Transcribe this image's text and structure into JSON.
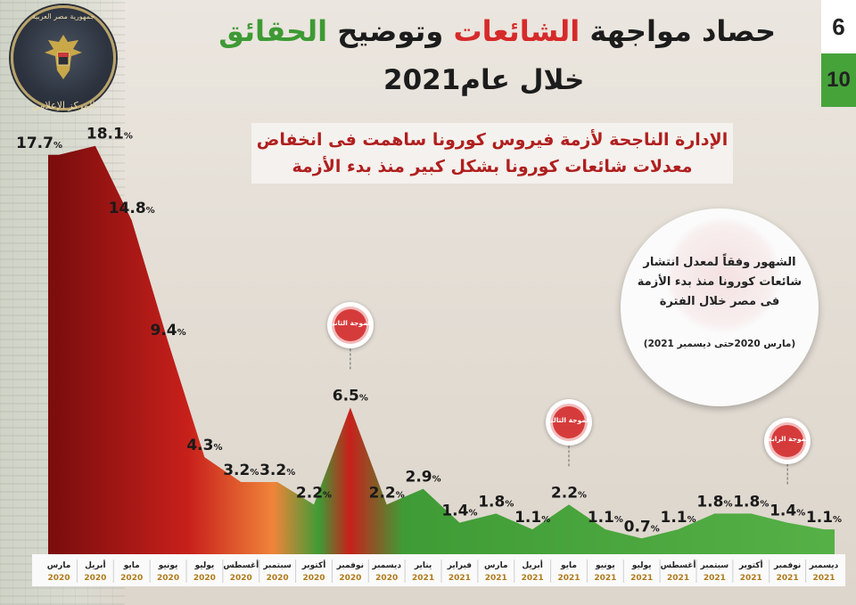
{
  "page_numbers": {
    "top": "6",
    "bottom": "10"
  },
  "logo_text": {
    "arc": "جمهورية مصر العربية",
    "ribbon": "المركز الإعلامي"
  },
  "title": {
    "part1": "حصاد مواجهة ",
    "part2": "الشائعات",
    "part3": " وتوضيح ",
    "part4": "الحقائق",
    "line2": "خلال عام2021"
  },
  "subtitle": [
    "الإدارة الناجحة لأزمة فيروس كورونا ساهمت فى انخفاض",
    "معدلات شائعات كورونا بشكل كبير منذ بدء الأزمة"
  ],
  "info_box": {
    "text": "الشهور وفقاً لمعدل انتشار شائعات كورونا منذ بدء الأزمة فى مصر خلال الفترة",
    "note": "(مارس 2020حتى ديسمبر 2021)"
  },
  "waves": [
    "الموجة الثانية",
    "الموجة الثالثة",
    "الموجة الرابعة"
  ],
  "chart_data": {
    "type": "area",
    "x": [
      "مارس 2020",
      "أبريل 2020",
      "مايو 2020",
      "يونيو 2020",
      "يوليو 2020",
      "أغسطس 2020",
      "سبتمبر 2020",
      "أكتوبر 2020",
      "نوفمبر 2020",
      "ديسمبر 2020",
      "يناير 2021",
      "فبراير 2021",
      "مارس 2021",
      "أبريل 2021",
      "مايو 2021",
      "يونيو 2021",
      "يوليو 2021",
      "أغسطس 2021",
      "سبتمبر 2021",
      "أكتوبر 2021",
      "نوفمبر 2021",
      "ديسمبر 2021"
    ],
    "months": [
      "مارس",
      "أبريل",
      "مايو",
      "يونيو",
      "يوليو",
      "أغسطس",
      "سبتمبر",
      "أكتوبر",
      "نوفمبر",
      "ديسمبر",
      "يناير",
      "فبراير",
      "مارس",
      "أبريل",
      "مايو",
      "يونيو",
      "يوليو",
      "أغسطس",
      "سبتمبر",
      "أكتوبر",
      "نوفمبر",
      "ديسمبر"
    ],
    "years": [
      "2020",
      "2020",
      "2020",
      "2020",
      "2020",
      "2020",
      "2020",
      "2020",
      "2020",
      "2020",
      "2021",
      "2021",
      "2021",
      "2021",
      "2021",
      "2021",
      "2021",
      "2021",
      "2021",
      "2021",
      "2021",
      "2021"
    ],
    "values": [
      17.7,
      18.1,
      14.8,
      9.4,
      4.3,
      3.2,
      3.2,
      2.2,
      6.5,
      2.2,
      2.9,
      1.4,
      1.8,
      1.1,
      2.2,
      1.1,
      0.7,
      1.1,
      1.8,
      1.8,
      1.4,
      1.1
    ],
    "unit": "%",
    "ylim": [
      0,
      19
    ],
    "grid": false,
    "colors": {
      "start": "#7e0e0e",
      "mid_red": "#c8201b",
      "orange": "#f0843a",
      "green": "#3f9b35",
      "light_green": "#55b046"
    },
    "wave_markers": [
      {
        "month_index": 8,
        "label": "الموجة الثانية"
      },
      {
        "month_index": 14,
        "label": "الموجة الثالثة"
      },
      {
        "month_index": 20,
        "label": "الموجة الرابعة"
      }
    ]
  }
}
